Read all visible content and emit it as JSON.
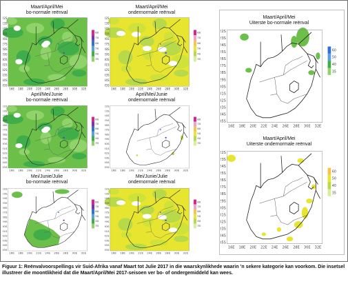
{
  "panels": [
    {
      "id": "p1",
      "line1": "Maart/April/Mei",
      "line2": "bo-normale reënval",
      "type": "green-full",
      "legend": [
        "80",
        "70",
        "60",
        "50",
        "40",
        "35"
      ]
    },
    {
      "id": "p2",
      "line1": "Maart/April/Mei",
      "line2": "ondernormale reënval",
      "type": "yellow-full",
      "legend": [
        "80",
        "70",
        "60",
        "50",
        "40",
        "35"
      ]
    },
    {
      "id": "p3",
      "line1": "Maart/April/Mei",
      "line2": "Uiterste bo-normale reënval",
      "type": "green-sparse",
      "legend": [
        "60",
        "50",
        "40",
        "35"
      ]
    },
    {
      "id": "p4",
      "line1": "April/Mei/Junie",
      "line2": "bo-normale reënval",
      "type": "green-full",
      "legend": [
        "80",
        "70",
        "60",
        "50",
        "40",
        "35"
      ]
    },
    {
      "id": "p5",
      "line1": "April/Mei/Junie",
      "line2": "ondernormale reënval",
      "type": "yellow-sparse",
      "legend": [
        "80",
        "70",
        "60",
        "50",
        "40",
        "35"
      ]
    },
    {
      "id": "p6",
      "line1": "Maart/April/Mei",
      "line2": "Uiterste ondernormale reënval",
      "type": "yellow-dots",
      "legend": [
        "60",
        "50",
        "40",
        "35"
      ]
    },
    {
      "id": "p7",
      "line1": "Mei/Junie/Julie",
      "line2": "bo-normale reënval",
      "type": "green-partial",
      "legend": [
        "80",
        "70",
        "60",
        "50",
        "40",
        "35"
      ]
    },
    {
      "id": "p8",
      "line1": "Mei/Junie/Julie",
      "line2": "ondernormale reënval",
      "type": "yellow-full",
      "legend": [
        "80",
        "70",
        "60",
        "50",
        "40",
        "35"
      ]
    }
  ],
  "axes": {
    "lon_ticks": [
      "16E",
      "18E",
      "20E",
      "22E",
      "24E",
      "26E",
      "28E",
      "30E",
      "32E"
    ],
    "lat_ticks": [
      "22S",
      "23S",
      "24S",
      "25S",
      "26S",
      "27S",
      "28S",
      "29S",
      "30S",
      "31S",
      "32S",
      "33S",
      "34S",
      "35S"
    ]
  },
  "colors": {
    "green_dark": "#3fae49",
    "green_mid": "#6cc04a",
    "green_light": "#8fd36a",
    "yellow": "#e7e52f",
    "yellow_green": "#b7d94a",
    "blue": "#2f6fd6",
    "purple": "#7b2fb8",
    "magenta": "#e01e8c"
  },
  "caption": "Figuur 1: Reënvalvoorspellings vir Suid-Afrika vanaf Maart tot Julie 2017 in die waarskynlikhede waarin ’n sekere kategorie kan voorkom. Die insetsel illustreer die moontlikheid dat die Maart/April/Mei 2017-seisoen ver bo- of ondergemiddeld kan wees."
}
